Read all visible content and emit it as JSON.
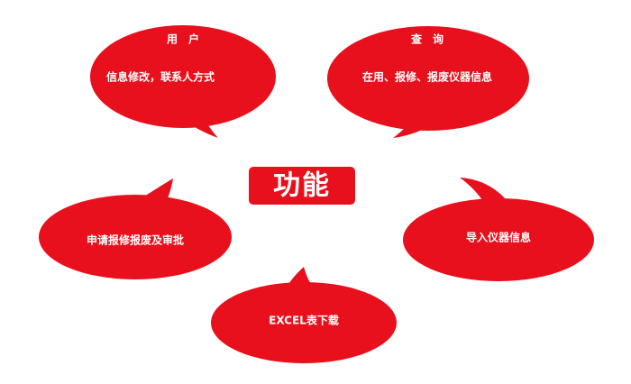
{
  "colors": {
    "bubble_fill": "#e8101c",
    "text": "#ffffff",
    "background": "#ffffff"
  },
  "center": {
    "label": "功能"
  },
  "bubbles": [
    {
      "id": "user",
      "heading": "用　户",
      "text": "信息修改，联系人方式"
    },
    {
      "id": "query",
      "heading": "查　询",
      "text": "在用、报修、报废仪器信息"
    },
    {
      "id": "apply",
      "heading": "",
      "text": "申请报修报废及审批"
    },
    {
      "id": "import",
      "heading": "",
      "text": "导入仪器信息"
    },
    {
      "id": "excel",
      "heading": "",
      "text": "EXCEL表下载"
    }
  ]
}
